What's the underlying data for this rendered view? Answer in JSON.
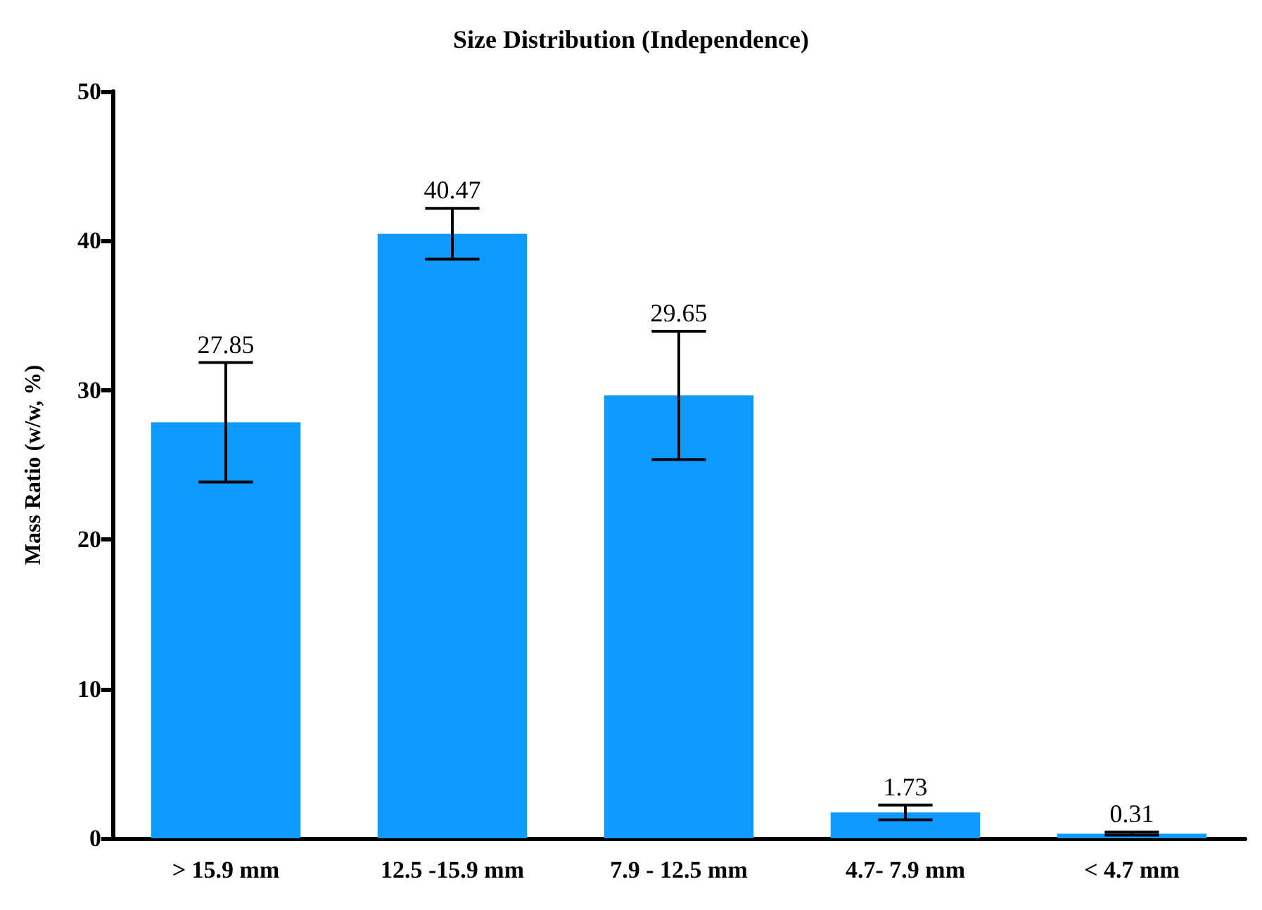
{
  "chart_data": {
    "type": "bar",
    "title": "Size Distribution (Independence)",
    "ylabel": "Mass Ratio (w/w, %)",
    "categories": [
      "> 15.9 mm",
      "12.5 -15.9 mm",
      "7.9 - 12.5 mm",
      "4.7- 7.9 mm",
      "< 4.7 mm"
    ],
    "values": [
      27.85,
      40.47,
      29.65,
      1.73,
      0.31
    ],
    "errors": [
      4.0,
      1.7,
      4.3,
      0.5,
      0.1
    ],
    "color": "#0f9aff",
    "ylim": [
      0,
      50
    ],
    "yticks": [
      0,
      10,
      20,
      30,
      40,
      50
    ],
    "grid": false,
    "data_labels": true
  }
}
